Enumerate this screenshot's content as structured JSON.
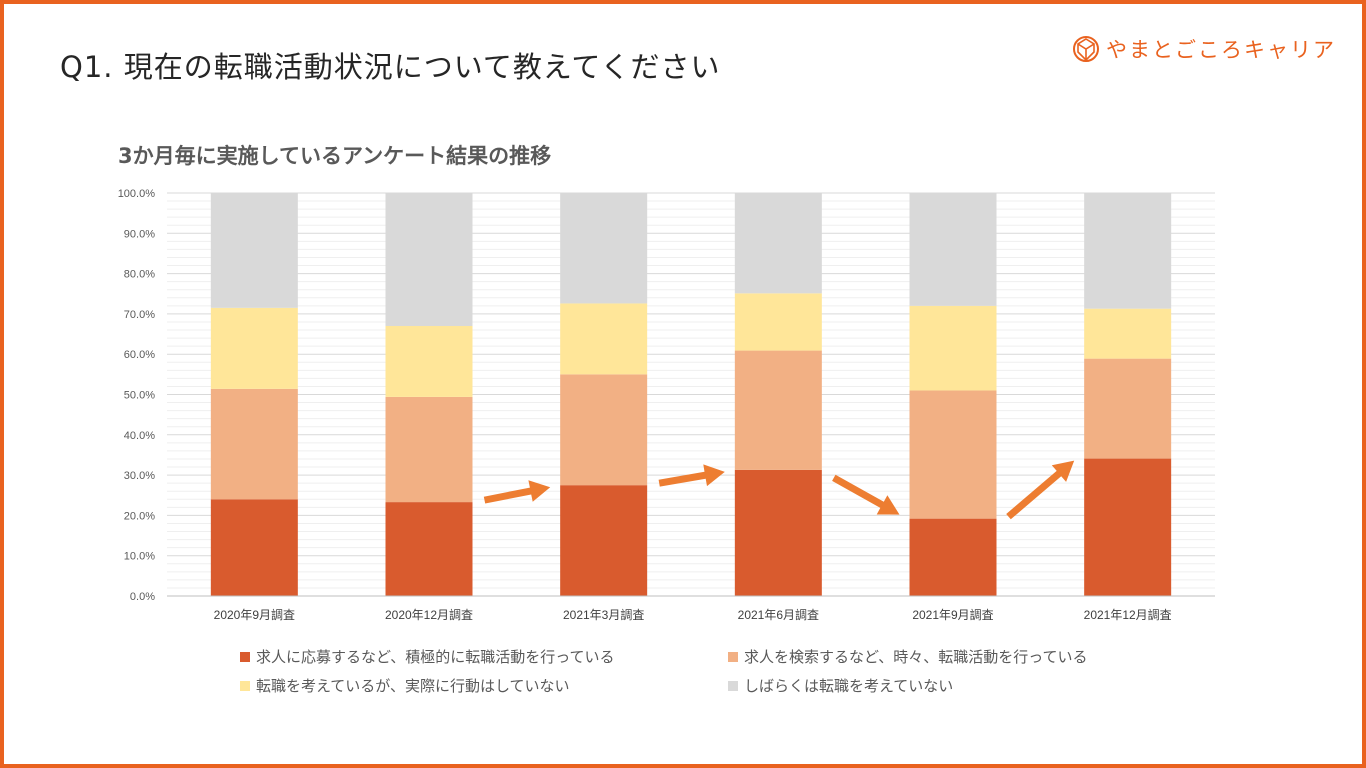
{
  "page": {
    "title": "Q1. 現在の転職活動状況について教えてください",
    "brand_name": "やまとごころキャリア",
    "brand_icon": "shield-logo-icon",
    "frame_color": "#e9621f"
  },
  "chart_data": {
    "type": "bar",
    "stacked": true,
    "title": "3か月毎に実施しているアンケート結果の推移",
    "xlabel": "",
    "ylabel": "",
    "ylim": [
      0,
      100
    ],
    "yticks": [
      "0.0%",
      "10.0%",
      "20.0%",
      "30.0%",
      "40.0%",
      "50.0%",
      "60.0%",
      "70.0%",
      "80.0%",
      "90.0%",
      "100.0%"
    ],
    "categories": [
      "2020年9月調査",
      "2020年12月調査",
      "2021年3月調査",
      "2021年6月調査",
      "2021年9月調査",
      "2021年12月調査"
    ],
    "series": [
      {
        "name": "求人に応募するなど、積極的に転職活動を行っている",
        "color": "#d95b2e",
        "values": [
          24.0,
          23.3,
          27.5,
          31.3,
          19.2,
          34.1
        ]
      },
      {
        "name": "求人を検索するなど、時々、転職活動を行っている",
        "color": "#f2b084",
        "values": [
          27.4,
          26.1,
          27.5,
          29.6,
          31.8,
          24.8
        ]
      },
      {
        "name": "転職を考えているが、実際に行動はしていない",
        "color": "#ffe699",
        "values": [
          20.1,
          17.6,
          17.6,
          14.2,
          21.0,
          12.4
        ]
      },
      {
        "name": "しばらくは転職を考えていない",
        "color": "#d9d9d9",
        "values": [
          28.5,
          33.0,
          27.4,
          24.9,
          28.0,
          28.7
        ]
      }
    ],
    "annotations": {
      "arrow_color": "#ed7d31",
      "arrows": [
        {
          "between": [
            "2020年12月調査",
            "2021年3月調査"
          ],
          "direction": "up"
        },
        {
          "between": [
            "2021年3月調査",
            "2021年6月調査"
          ],
          "direction": "up"
        },
        {
          "between": [
            "2021年6月調査",
            "2021年9月調査"
          ],
          "direction": "down"
        },
        {
          "between": [
            "2021年9月調査",
            "2021年12月調査"
          ],
          "direction": "up"
        }
      ]
    },
    "legend_position": "bottom",
    "grid": true
  }
}
